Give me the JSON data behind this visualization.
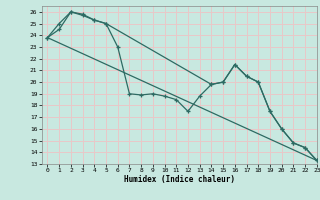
{
  "xlabel": "Humidex (Indice chaleur)",
  "xlim": [
    -0.5,
    23
  ],
  "ylim": [
    13,
    26.5
  ],
  "yticks": [
    13,
    14,
    15,
    16,
    17,
    18,
    19,
    20,
    21,
    22,
    23,
    24,
    25,
    26
  ],
  "xticks": [
    0,
    1,
    2,
    3,
    4,
    5,
    6,
    7,
    8,
    9,
    10,
    11,
    12,
    13,
    14,
    15,
    16,
    17,
    18,
    19,
    20,
    21,
    22,
    23
  ],
  "bg_color": "#c8e8e0",
  "grid_color_major": "#e8c8c8",
  "grid_color_minor": "#e8c8c8",
  "line_color": "#2d6b63",
  "line1_x": [
    0,
    1,
    2,
    3,
    4,
    5,
    6,
    7,
    8,
    9,
    10,
    11,
    12,
    13,
    14,
    15,
    16,
    17,
    18,
    19,
    20,
    21,
    22,
    23
  ],
  "line1_y": [
    23.8,
    24.5,
    26.0,
    25.8,
    25.3,
    25.0,
    23.0,
    19.0,
    18.9,
    19.0,
    18.8,
    18.5,
    17.5,
    18.8,
    19.8,
    20.0,
    21.5,
    20.5,
    20.0,
    17.5,
    16.0,
    14.8,
    14.4,
    13.3
  ],
  "line2_x": [
    0,
    1,
    2,
    3,
    4,
    5,
    14,
    15,
    16,
    17,
    18,
    19,
    20,
    21,
    22,
    23
  ],
  "line2_y": [
    23.8,
    25.0,
    26.0,
    25.7,
    25.3,
    25.0,
    19.8,
    20.0,
    21.5,
    20.5,
    20.0,
    17.5,
    16.0,
    14.8,
    14.4,
    13.3
  ],
  "line3_x": [
    0,
    23
  ],
  "line3_y": [
    23.8,
    13.3
  ]
}
